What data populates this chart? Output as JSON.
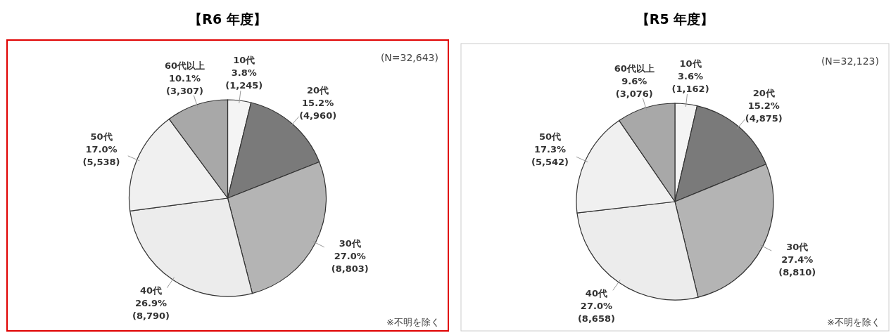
{
  "chart_data": [
    {
      "type": "pie",
      "title": "【R6 年度】",
      "categories": [
        "10代",
        "20代",
        "30代",
        "40代",
        "50代",
        "60代以上"
      ],
      "values": [
        1245,
        4960,
        8803,
        8790,
        5538,
        3307
      ],
      "value_labels": [
        "3.8%\n(1,245)",
        "15.2%\n(4,960)",
        "27.0%\n(8,803)",
        "26.9%\n(8,790)",
        "17.0%\n(5,538)",
        "10.1%\n(3,307)"
      ],
      "colors": [
        "#f4f4f4",
        "#7a7a7a",
        "#b4b4b4",
        "#ececec",
        "#f0f0f0",
        "#a8a8a8"
      ],
      "annotations": [
        "(N=32,643)",
        "※不明を除く"
      ],
      "legend": false
    },
    {
      "type": "pie",
      "title": "【R5 年度】",
      "categories": [
        "10代",
        "20代",
        "30代",
        "40代",
        "50代",
        "60代以上"
      ],
      "values": [
        1162,
        4875,
        8810,
        8658,
        5542,
        3076
      ],
      "value_labels": [
        "3.6%\n(1,162)",
        "15.2%\n(4,875)",
        "27.4%\n(8,810)",
        "27.0%\n(8,658)",
        "17.3%\n(5,542)",
        "9.6%\n(3,076)"
      ],
      "colors": [
        "#f4f4f4",
        "#7a7a7a",
        "#b4b4b4",
        "#ececec",
        "#f0f0f0",
        "#a8a8a8"
      ],
      "annotations": [
        "(N=32,123)",
        "※不明を除く"
      ],
      "legend": false
    }
  ]
}
